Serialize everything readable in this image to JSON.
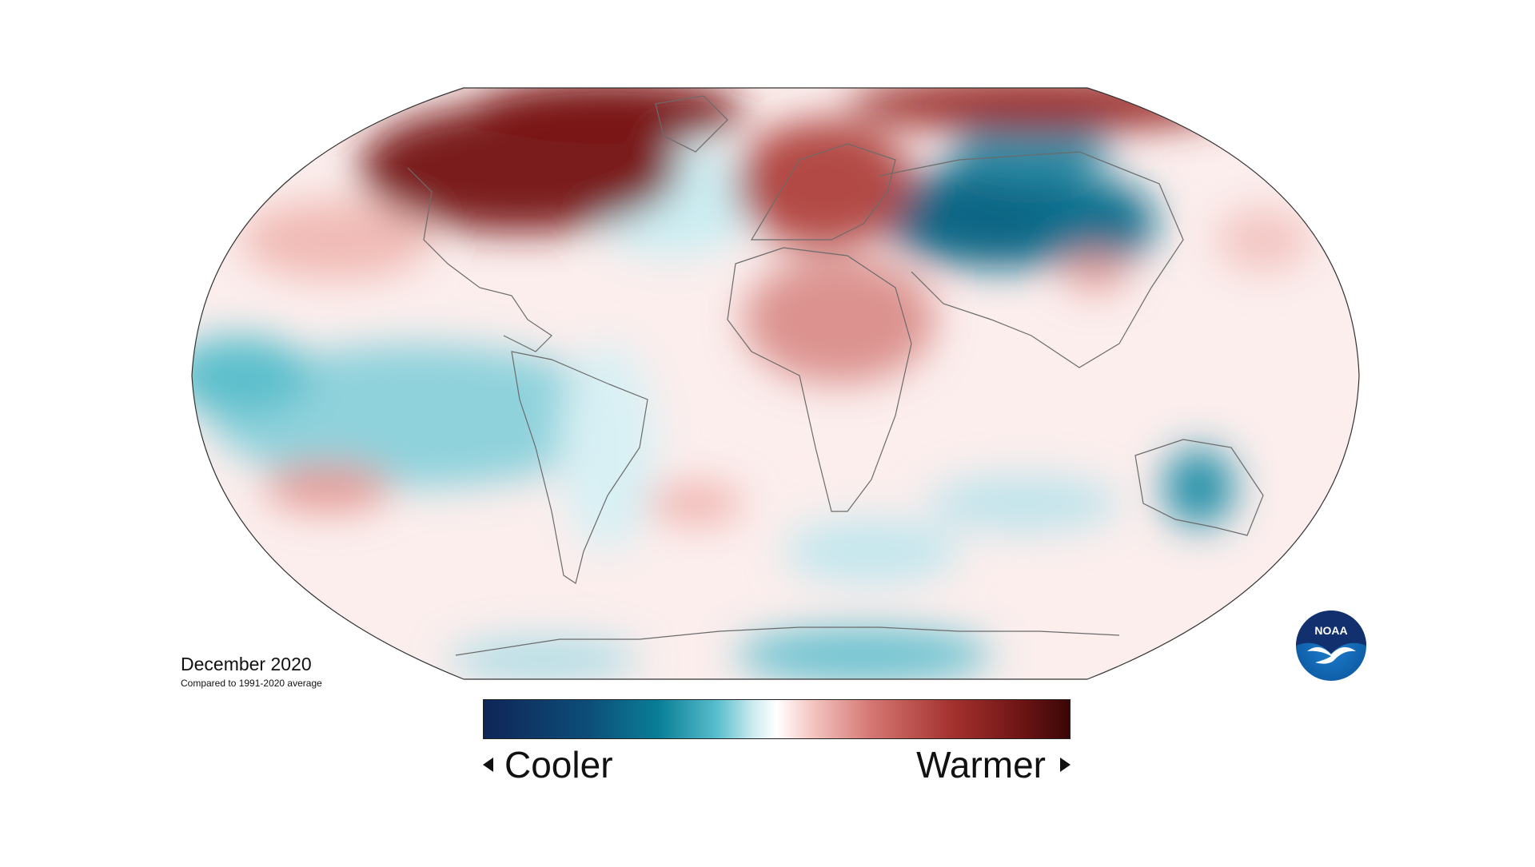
{
  "caption": {
    "date": "December 2020",
    "baseline": "Compared to 1991-2020 average"
  },
  "legend": {
    "low_label": "Cooler",
    "high_label": "Warmer",
    "colors": [
      "#0e2557",
      "#0a6f8f",
      "#3ea8bd",
      "#bfe6ec",
      "#ffffff",
      "#f4c0bd",
      "#d4706c",
      "#a8302e",
      "#6e1414",
      "#3d0707"
    ]
  },
  "logo": {
    "text": "NOAA",
    "colors": {
      "top": "#12306e",
      "bottom": "#1672c4",
      "bird": "#ffffff"
    }
  },
  "map": {
    "projection": "Robinson",
    "palette": {
      "deep_cold": "#0a5e7d",
      "cold": "#5cbfcc",
      "cool": "#b8e4ea",
      "warm": "#f0b0ab",
      "hot": "#b84a45",
      "very_hot": "#7a1515",
      "coast": "#6b6b6b"
    }
  }
}
